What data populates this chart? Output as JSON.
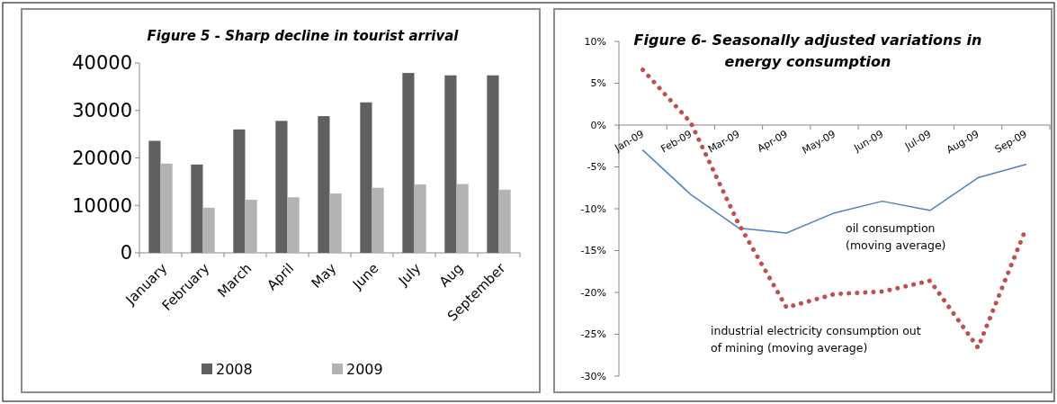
{
  "chart_data": [
    {
      "type": "bar",
      "title": "Figure 5 - Sharp decline in tourist arrival",
      "categories": [
        "January",
        "February",
        "March",
        "April",
        "May",
        "June",
        "July",
        "Aug",
        "September"
      ],
      "series": [
        {
          "name": "2008",
          "color": "#606060",
          "values": [
            23600,
            18600,
            26000,
            27800,
            28800,
            31700,
            37900,
            37400,
            37400
          ]
        },
        {
          "name": "2009",
          "color": "#b3b3b3",
          "values": [
            18800,
            9500,
            11200,
            11700,
            12500,
            13700,
            14400,
            14500,
            13300
          ]
        }
      ],
      "ylim": [
        0,
        40000
      ],
      "yticks": [
        0,
        10000,
        20000,
        30000,
        40000
      ],
      "grid": false,
      "legend": "bottom"
    },
    {
      "type": "line",
      "title": "Figure 6-  Seasonally adjusted variations in energy consumption",
      "categories": [
        "Jan-09",
        "Feb-09",
        "Mar-09",
        "Apr-09",
        "May-09",
        "Jun-09",
        "Jul-09",
        "Aug-09",
        "Sep-09"
      ],
      "series": [
        {
          "name": "oil consumption (moving average)",
          "color": "#4f81bd",
          "line_style": "solid",
          "values": [
            -3.0,
            -8.3,
            -12.3,
            -12.9,
            -10.5,
            -9.1,
            -10.2,
            -6.3,
            -4.7
          ]
        },
        {
          "name": "industrial electricity consumption  out of mining (moving average)",
          "color": "#c0504d",
          "line_style": "dotted",
          "values": [
            6.6,
            0.3,
            -11.8,
            -21.8,
            -20.2,
            -19.9,
            -18.6,
            -26.6,
            -12.4
          ]
        }
      ],
      "ylim": [
        -30,
        10
      ],
      "yticks": [
        {
          "value": -30,
          "label": "-30%"
        },
        {
          "value": -25,
          "label": "-25%"
        },
        {
          "value": -20,
          "label": "-20%"
        },
        {
          "value": -15,
          "label": "-15%"
        },
        {
          "value": -10,
          "label": "-10%"
        },
        {
          "value": -5,
          "label": "-5%"
        },
        {
          "value": 0,
          "label": "0%"
        },
        {
          "value": 5,
          "label": "5%"
        },
        {
          "value": 10,
          "label": "10%"
        }
      ],
      "grid": false,
      "legend": false
    }
  ]
}
